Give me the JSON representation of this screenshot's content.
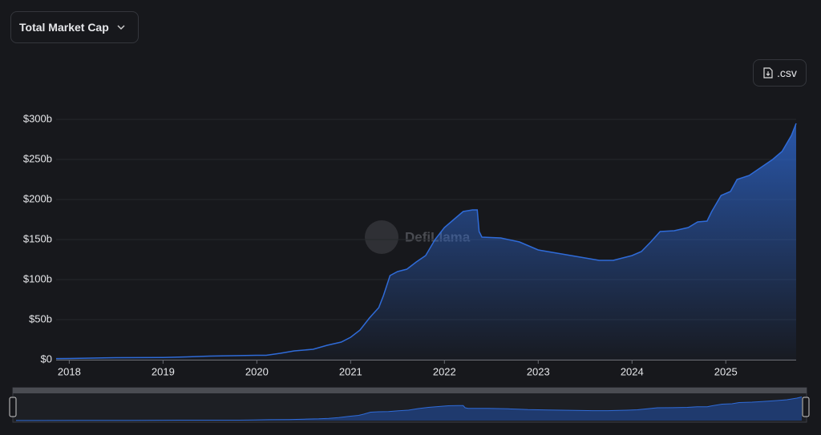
{
  "ui": {
    "metric_button": "Total Market Cap",
    "csv_button": ".csv",
    "watermark": "DefiLlama"
  },
  "chart_data": {
    "type": "area",
    "color": "#2f6bd8",
    "grid": true,
    "x": [
      2017.86,
      2018.0,
      2018.5,
      2019.0,
      2019.25,
      2019.5,
      2019.75,
      2020.0,
      2020.1,
      2020.25,
      2020.4,
      2020.6,
      2020.75,
      2020.9,
      2021.0,
      2021.1,
      2021.2,
      2021.3,
      2021.35,
      2021.42,
      2021.5,
      2021.6,
      2021.7,
      2021.8,
      2021.9,
      2022.0,
      2022.1,
      2022.2,
      2022.3,
      2022.35,
      2022.37,
      2022.4,
      2022.6,
      2022.8,
      2022.9,
      2023.0,
      2023.2,
      2023.4,
      2023.6,
      2023.65,
      2023.8,
      2024.0,
      2024.1,
      2024.2,
      2024.3,
      2024.45,
      2024.6,
      2024.7,
      2024.8,
      2024.85,
      2024.95,
      2025.05,
      2025.12,
      2025.25,
      2025.35,
      2025.5,
      2025.6,
      2025.7,
      2025.75
    ],
    "values": [
      1.4,
      1.5,
      2.5,
      2.8,
      3.5,
      4.5,
      5,
      5.5,
      5.5,
      8,
      11,
      13,
      18,
      22,
      28,
      37,
      52,
      65,
      80,
      105,
      110,
      113,
      122,
      130,
      150,
      165,
      175,
      185,
      187,
      187,
      160,
      153,
      152,
      147,
      142,
      137,
      133,
      129,
      125,
      124,
      124,
      130,
      135,
      147,
      160,
      161,
      165,
      172,
      173,
      185,
      205,
      210,
      225,
      230,
      238,
      250,
      260,
      280,
      295
    ],
    "xlim": [
      2017.86,
      2025.75
    ],
    "xticks": [
      2018,
      2019,
      2020,
      2021,
      2022,
      2023,
      2024,
      2025
    ],
    "ylim": [
      0,
      300
    ],
    "yticks": [
      {
        "value": 0,
        "label": "$0"
      },
      {
        "value": 50,
        "label": "$50b"
      },
      {
        "value": 100,
        "label": "$100b"
      },
      {
        "value": 150,
        "label": "$150b"
      },
      {
        "value": 200,
        "label": "$200b"
      },
      {
        "value": 250,
        "label": "$250b"
      },
      {
        "value": 300,
        "label": "$300b"
      }
    ]
  }
}
